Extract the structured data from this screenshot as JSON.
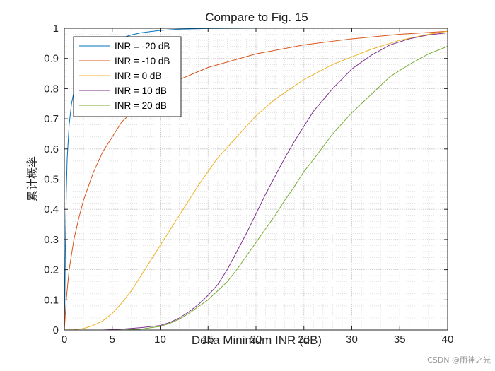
{
  "chart_data": {
    "type": "line",
    "title": "Compare to Fig. 15",
    "xlabel": "Delta Minimum INR (dB)",
    "ylabel": "累计概率",
    "xlim": [
      0,
      40
    ],
    "ylim": [
      0,
      1
    ],
    "xticks": [
      0,
      5,
      10,
      15,
      20,
      25,
      30,
      35,
      40
    ],
    "yticks": [
      0,
      0.1,
      0.2,
      0.3,
      0.4,
      0.5,
      0.6,
      0.7,
      0.8,
      0.9,
      1
    ],
    "ytick_labels": [
      "0",
      "0.1",
      "0.2",
      "0.3",
      "0.4",
      "0.5",
      "0.6",
      "0.7",
      "0.8",
      "0.9",
      "1"
    ],
    "grid": "major and minor (dotted)",
    "legend_position": "top-left",
    "series": [
      {
        "name": "INR = -20 dB",
        "color": "#0072BD",
        "x": [
          0,
          0.05,
          0.1,
          0.2,
          0.3,
          0.5,
          0.75,
          1,
          1.5,
          2,
          3,
          4,
          5,
          6,
          7,
          8,
          10,
          12,
          15,
          20,
          40
        ],
        "y": [
          0,
          0.1,
          0.25,
          0.45,
          0.57,
          0.68,
          0.75,
          0.79,
          0.84,
          0.87,
          0.91,
          0.935,
          0.955,
          0.968,
          0.978,
          0.985,
          0.993,
          0.997,
          0.999,
          1,
          1
        ]
      },
      {
        "name": "INR = -10 dB",
        "color": "#D95319",
        "x": [
          0,
          0.2,
          0.5,
          1,
          1.5,
          2,
          3,
          4,
          5,
          6,
          7,
          8,
          10,
          12,
          15,
          20,
          25,
          30,
          35,
          40
        ],
        "y": [
          0,
          0.1,
          0.2,
          0.3,
          0.37,
          0.43,
          0.52,
          0.59,
          0.64,
          0.69,
          0.72,
          0.75,
          0.8,
          0.83,
          0.87,
          0.915,
          0.945,
          0.965,
          0.98,
          0.99
        ]
      },
      {
        "name": "INR = 0 dB",
        "color": "#EDB120",
        "x": [
          0,
          1,
          2,
          3,
          4,
          5,
          6,
          7,
          8,
          9,
          10,
          12,
          14,
          16,
          18,
          20,
          22,
          25,
          28,
          30,
          32,
          35,
          38,
          40
        ],
        "y": [
          0,
          0.001,
          0.005,
          0.015,
          0.03,
          0.055,
          0.09,
          0.13,
          0.18,
          0.23,
          0.28,
          0.38,
          0.48,
          0.57,
          0.64,
          0.71,
          0.765,
          0.83,
          0.88,
          0.905,
          0.93,
          0.96,
          0.98,
          0.99
        ]
      },
      {
        "name": "INR = 10 dB",
        "color": "#7E2F8E",
        "x": [
          0,
          4,
          6,
          8,
          10,
          11,
          12,
          13,
          14,
          15,
          16,
          17,
          18,
          19,
          20,
          21,
          22,
          23,
          24,
          25,
          26,
          28,
          30,
          32,
          34,
          36,
          38,
          40
        ],
        "y": [
          0,
          0,
          0.003,
          0.008,
          0.015,
          0.025,
          0.04,
          0.06,
          0.085,
          0.115,
          0.15,
          0.2,
          0.26,
          0.32,
          0.385,
          0.45,
          0.51,
          0.57,
          0.625,
          0.675,
          0.725,
          0.8,
          0.865,
          0.91,
          0.945,
          0.965,
          0.978,
          0.985
        ]
      },
      {
        "name": "INR = 20 dB",
        "color": "#77AC30",
        "x": [
          0,
          6,
          8,
          10,
          11,
          12,
          13,
          14,
          15,
          16,
          17,
          18,
          19,
          20,
          21,
          22,
          23,
          24,
          25,
          26,
          28,
          30,
          32,
          34,
          36,
          38,
          40
        ],
        "y": [
          0,
          0,
          0.003,
          0.012,
          0.022,
          0.036,
          0.055,
          0.078,
          0.1,
          0.13,
          0.16,
          0.2,
          0.245,
          0.29,
          0.335,
          0.38,
          0.43,
          0.475,
          0.525,
          0.565,
          0.65,
          0.72,
          0.78,
          0.84,
          0.88,
          0.915,
          0.94
        ]
      }
    ]
  },
  "watermark": "CSDN @雨神之光"
}
